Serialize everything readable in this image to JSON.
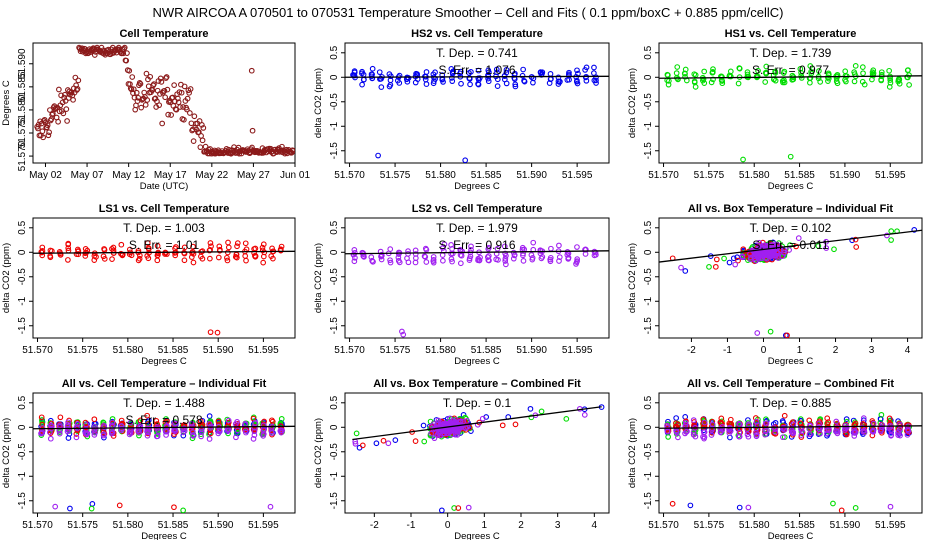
{
  "figure": {
    "title": "NWR   AIRCOA A   070501 to 070531   Temperature Smoother – Cell and Fits ( 0.1   ppm/boxC +  0.885  ppm/cellC)"
  },
  "colors": {
    "brown": "#8b1a1a",
    "blue": "#0000ee",
    "green": "#00dd00",
    "red": "#ee0000",
    "purple": "#a020f0",
    "line": "#000000"
  },
  "chart_data": [
    {
      "id": "p1",
      "type": "scatter",
      "title": "Cell Temperature",
      "xlabel": "Date (UTC)",
      "ylabel": "Degrees C",
      "xlim": [
        0.5,
        32
      ],
      "ylim": [
        51.5685,
        51.5945
      ],
      "xticks": [
        2,
        7,
        12,
        17,
        22,
        27,
        32
      ],
      "xticklabels": [
        "May 02",
        "May 07",
        "May 12",
        "May 17",
        "May 22",
        "May 27",
        "Jun 01"
      ],
      "yticks": [
        51.57,
        51.575,
        51.58,
        51.585,
        51.59
      ],
      "yticklabels": [
        "51.570",
        "51.575",
        "51.580",
        "51.585",
        "51.590"
      ],
      "kind": "timeseries",
      "series": [
        {
          "name": "Cell temperature",
          "color": "brown"
        }
      ]
    },
    {
      "id": "p2",
      "type": "scatter",
      "title": "HS2 vs. Cell Temperature",
      "xlabel": "Degrees C",
      "ylabel": "delta CO2 (ppm)",
      "xlim": [
        51.5695,
        51.5985
      ],
      "ylim": [
        -1.75,
        0.7
      ],
      "xticks": [
        51.57,
        51.575,
        51.58,
        51.585,
        51.59,
        51.595
      ],
      "xticklabels": [
        "51.570",
        "51.575",
        "51.580",
        "51.585",
        "51.590",
        "51.595"
      ],
      "yticks": [
        -1.5,
        -1,
        -0.5,
        0,
        0.5
      ],
      "yticklabels": [
        "-1.5",
        "-1",
        "-0.5",
        "0",
        "0.5"
      ],
      "kind": "cell",
      "annotation": [
        "T. Dep. =  0.741",
        "S. Err. = 1.076"
      ],
      "fit": {
        "x": [
          51.5695,
          51.5985
        ],
        "y": [
          0.0,
          0.02
        ]
      },
      "series": [
        {
          "name": "HS2",
          "color": "blue"
        }
      ]
    },
    {
      "id": "p3",
      "type": "scatter",
      "title": "HS1 vs. Cell Temperature",
      "xlabel": "Degrees C",
      "ylabel": "delta CO2 (ppm)",
      "xlim": [
        51.5695,
        51.5985
      ],
      "ylim": [
        -1.75,
        0.7
      ],
      "xticks": [
        51.57,
        51.575,
        51.58,
        51.585,
        51.59,
        51.595
      ],
      "xticklabels": [
        "51.570",
        "51.575",
        "51.580",
        "51.585",
        "51.590",
        "51.595"
      ],
      "yticks": [
        -1.5,
        -1,
        -0.5,
        0,
        0.5
      ],
      "yticklabels": [
        "-1.5",
        "-1",
        "-0.5",
        "0",
        "0.5"
      ],
      "kind": "cell",
      "annotation": [
        "T. Dep. =  1.739",
        "S. Err. = 0.977"
      ],
      "fit": {
        "x": [
          51.5695,
          51.5985
        ],
        "y": [
          -0.02,
          0.03
        ]
      },
      "series": [
        {
          "name": "HS1",
          "color": "green"
        }
      ]
    },
    {
      "id": "p4",
      "type": "scatter",
      "title": "LS1 vs. Cell Temperature",
      "xlabel": "Degrees C",
      "ylabel": "delta CO2 (ppm)",
      "xlim": [
        51.5695,
        51.5985
      ],
      "ylim": [
        -1.75,
        0.7
      ],
      "xticks": [
        51.57,
        51.575,
        51.58,
        51.585,
        51.59,
        51.595
      ],
      "xticklabels": [
        "51.570",
        "51.575",
        "51.580",
        "51.585",
        "51.590",
        "51.595"
      ],
      "yticks": [
        -1.5,
        -1,
        -0.5,
        0,
        0.5
      ],
      "yticklabels": [
        "-1.5",
        "-1",
        "-0.5",
        "0",
        "0.5"
      ],
      "kind": "cell",
      "annotation": [
        "T. Dep. =  1.003",
        "S. Err. = 1.01"
      ],
      "fit": {
        "x": [
          51.5695,
          51.5985
        ],
        "y": [
          -0.02,
          0.02
        ]
      },
      "series": [
        {
          "name": "LS1",
          "color": "red"
        }
      ]
    },
    {
      "id": "p5",
      "type": "scatter",
      "title": "LS2 vs. Cell Temperature",
      "xlabel": "Degrees C",
      "ylabel": "delta CO2 (ppm)",
      "xlim": [
        51.5695,
        51.5985
      ],
      "ylim": [
        -1.75,
        0.7
      ],
      "xticks": [
        51.57,
        51.575,
        51.58,
        51.585,
        51.59,
        51.595
      ],
      "xticklabels": [
        "51.570",
        "51.575",
        "51.580",
        "51.585",
        "51.590",
        "51.595"
      ],
      "yticks": [
        -1.5,
        -1,
        -0.5,
        0,
        0.5
      ],
      "yticklabels": [
        "-1.5",
        "-1",
        "-0.5",
        "0",
        "0.5"
      ],
      "kind": "cell",
      "annotation": [
        "T. Dep. =  1.979",
        "S. Err. = 0.916"
      ],
      "fit": {
        "x": [
          51.5695,
          51.5985
        ],
        "y": [
          -0.03,
          0.03
        ]
      },
      "series": [
        {
          "name": "LS2",
          "color": "purple"
        }
      ]
    },
    {
      "id": "p6",
      "type": "scatter",
      "title": "All vs. Box Temperature – Individual Fit",
      "xlabel": "Degrees C",
      "ylabel": "delta CO2 (ppm)",
      "xlim": [
        -2.9,
        4.4
      ],
      "ylim": [
        -1.75,
        0.7
      ],
      "xticks": [
        -2,
        -1,
        0,
        1,
        2,
        3,
        4
      ],
      "xticklabels": [
        "-2",
        "-1",
        "0",
        "1",
        "2",
        "3",
        "4"
      ],
      "yticks": [
        -1.5,
        -1,
        -0.5,
        0,
        0.5
      ],
      "yticklabels": [
        "-1.5",
        "-1",
        "-0.5",
        "0",
        "0.5"
      ],
      "kind": "box",
      "annotation": [
        "T. Dep. =  0.102",
        "S. Err. = 0.011"
      ],
      "fit": {
        "x": [
          -2.9,
          4.4
        ],
        "y": [
          -0.2,
          0.45
        ]
      },
      "series": [
        {
          "name": "HS2",
          "color": "blue"
        },
        {
          "name": "HS1",
          "color": "green"
        },
        {
          "name": "LS1",
          "color": "red"
        },
        {
          "name": "LS2",
          "color": "purple"
        }
      ]
    },
    {
      "id": "p7",
      "type": "scatter",
      "title": "All vs. Cell Temperature – Individual Fit",
      "xlabel": "Degrees C",
      "ylabel": "delta CO2 (ppm)",
      "xlim": [
        51.5695,
        51.5985
      ],
      "ylim": [
        -1.75,
        0.7
      ],
      "xticks": [
        51.57,
        51.575,
        51.58,
        51.585,
        51.59,
        51.595
      ],
      "xticklabels": [
        "51.570",
        "51.575",
        "51.580",
        "51.585",
        "51.590",
        "51.595"
      ],
      "yticks": [
        -1.5,
        -1,
        -0.5,
        0,
        0.5
      ],
      "yticklabels": [
        "-1.5",
        "-1",
        "-0.5",
        "0",
        "0.5"
      ],
      "kind": "cell",
      "annotation": [
        "T. Dep. =  1.488",
        "S. Err. = 0.578"
      ],
      "fit": {
        "x": [
          51.5695,
          51.5985
        ],
        "y": [
          -0.03,
          0.02
        ]
      },
      "series": [
        {
          "name": "HS2",
          "color": "blue"
        },
        {
          "name": "HS1",
          "color": "green"
        },
        {
          "name": "LS1",
          "color": "red"
        },
        {
          "name": "LS2",
          "color": "purple"
        }
      ]
    },
    {
      "id": "p8",
      "type": "scatter",
      "title": "All vs. Box Temperature – Combined Fit",
      "xlabel": "Degrees C",
      "ylabel": "delta CO2 (ppm)",
      "xlim": [
        -2.8,
        4.4
      ],
      "ylim": [
        -1.75,
        0.7
      ],
      "xticks": [
        -2,
        -1,
        0,
        1,
        2,
        3,
        4
      ],
      "xticklabels": [
        "-2",
        "-1",
        "0",
        "1",
        "2",
        "3",
        "4"
      ],
      "yticks": [
        -1.5,
        -1,
        -0.5,
        0,
        0.5
      ],
      "yticklabels": [
        "-1.5",
        "-1",
        "-0.5",
        "0",
        "0.5"
      ],
      "kind": "box",
      "annotation": [
        "T. Dep. =  0.1"
      ],
      "fit": {
        "x": [
          -2.6,
          4.2
        ],
        "y": [
          -0.25,
          0.42
        ]
      },
      "series": [
        {
          "name": "HS2",
          "color": "blue"
        },
        {
          "name": "HS1",
          "color": "green"
        },
        {
          "name": "LS1",
          "color": "red"
        },
        {
          "name": "LS2",
          "color": "purple"
        }
      ]
    },
    {
      "id": "p9",
      "type": "scatter",
      "title": "All vs. Cell Temperature – Combined Fit",
      "xlabel": "Degrees C",
      "ylabel": "delta CO2 (ppm)",
      "xlim": [
        51.5695,
        51.5985
      ],
      "ylim": [
        -1.75,
        0.7
      ],
      "xticks": [
        51.57,
        51.575,
        51.58,
        51.585,
        51.59,
        51.595
      ],
      "xticklabels": [
        "51.570",
        "51.575",
        "51.580",
        "51.585",
        "51.590",
        "51.595"
      ],
      "yticks": [
        -1.5,
        -1,
        -0.5,
        0,
        0.5
      ],
      "yticklabels": [
        "-1.5",
        "-1",
        "-0.5",
        "0",
        "0.5"
      ],
      "kind": "cell",
      "annotation": [
        "T. Dep. =  0.885"
      ],
      "fit": {
        "x": [
          51.5695,
          51.5985
        ],
        "y": [
          -0.02,
          0.03
        ]
      },
      "series": [
        {
          "name": "HS2",
          "color": "blue"
        },
        {
          "name": "HS1",
          "color": "green"
        },
        {
          "name": "LS1",
          "color": "red"
        },
        {
          "name": "LS2",
          "color": "purple"
        }
      ]
    }
  ]
}
